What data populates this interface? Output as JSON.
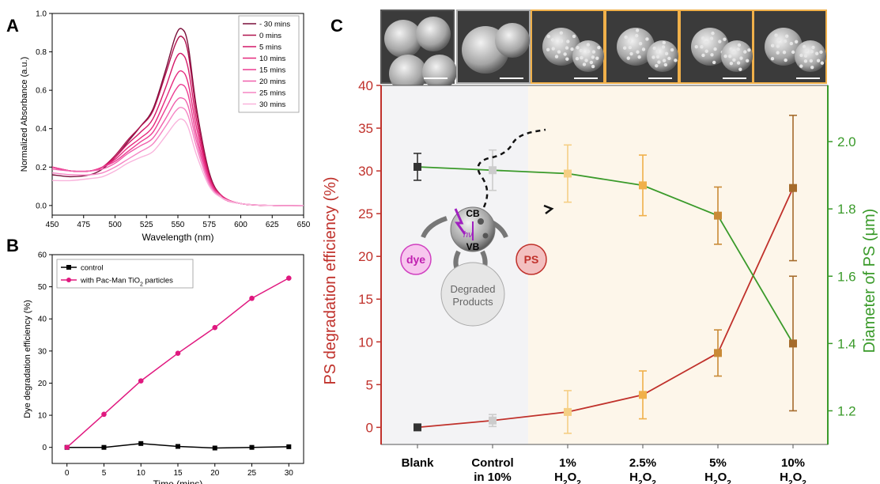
{
  "panels": {
    "a_letter": "A",
    "b_letter": "B",
    "c_letter": "C"
  },
  "chart_data": [
    {
      "panel": "A",
      "type": "line",
      "xlabel": "Wavelength (nm)",
      "ylabel": "Normalized Absorbance (a.u.)",
      "xlim": [
        450,
        650
      ],
      "ylim": [
        -0.05,
        1.0
      ],
      "x_ticks": [
        450,
        475,
        500,
        525,
        550,
        575,
        600,
        625,
        650
      ],
      "y_ticks": [
        0.0,
        0.2,
        0.4,
        0.6,
        0.8,
        1.0
      ],
      "x_tick_labels": [
        "450",
        "475",
        "500",
        "525",
        "550",
        "575",
        "600",
        "625",
        "650"
      ],
      "y_tick_labels": [
        "0.0",
        "0.2",
        "0.4",
        "0.6",
        "0.8",
        "1.0"
      ],
      "legend_position": "top-right",
      "x": [
        450,
        465,
        480,
        490,
        500,
        510,
        520,
        530,
        540,
        548,
        553,
        558,
        565,
        575,
        585,
        600,
        625,
        650
      ],
      "series": [
        {
          "name": "- 30 mins",
          "color": "#7a0f3a",
          "values": [
            0.16,
            0.15,
            0.16,
            0.19,
            0.25,
            0.33,
            0.41,
            0.5,
            0.7,
            0.88,
            0.92,
            0.84,
            0.5,
            0.17,
            0.05,
            0.01,
            0.0,
            0.0
          ]
        },
        {
          "name": "0 mins",
          "color": "#b0124f",
          "values": [
            0.2,
            0.18,
            0.18,
            0.2,
            0.26,
            0.34,
            0.41,
            0.49,
            0.68,
            0.84,
            0.88,
            0.8,
            0.48,
            0.16,
            0.05,
            0.01,
            0.0,
            0.0
          ]
        },
        {
          "name": "5 mins",
          "color": "#d41868",
          "values": [
            0.2,
            0.18,
            0.18,
            0.2,
            0.25,
            0.32,
            0.38,
            0.45,
            0.61,
            0.76,
            0.79,
            0.72,
            0.44,
            0.15,
            0.05,
            0.01,
            0.0,
            0.0
          ]
        },
        {
          "name": "10 mins",
          "color": "#e62a7e",
          "values": [
            0.2,
            0.18,
            0.18,
            0.2,
            0.24,
            0.3,
            0.35,
            0.41,
            0.55,
            0.67,
            0.7,
            0.64,
            0.4,
            0.14,
            0.05,
            0.01,
            0.0,
            0.0
          ]
        },
        {
          "name": "15 mins",
          "color": "#ec3d92",
          "values": [
            0.2,
            0.18,
            0.18,
            0.2,
            0.23,
            0.28,
            0.33,
            0.38,
            0.5,
            0.6,
            0.63,
            0.58,
            0.36,
            0.13,
            0.04,
            0.01,
            0.0,
            0.0
          ]
        },
        {
          "name": "20 mins",
          "color": "#f060ac",
          "values": [
            0.19,
            0.18,
            0.18,
            0.19,
            0.22,
            0.27,
            0.31,
            0.35,
            0.45,
            0.54,
            0.56,
            0.52,
            0.33,
            0.12,
            0.04,
            0.01,
            0.0,
            0.0
          ]
        },
        {
          "name": "25 mins",
          "color": "#f585c4",
          "values": [
            0.17,
            0.16,
            0.16,
            0.17,
            0.2,
            0.24,
            0.28,
            0.32,
            0.41,
            0.49,
            0.51,
            0.47,
            0.3,
            0.11,
            0.04,
            0.01,
            0.0,
            0.0
          ]
        },
        {
          "name": "30 mins",
          "color": "#f9b3dc",
          "values": [
            0.13,
            0.13,
            0.14,
            0.15,
            0.18,
            0.22,
            0.25,
            0.28,
            0.36,
            0.43,
            0.45,
            0.41,
            0.26,
            0.1,
            0.04,
            0.01,
            0.0,
            0.0
          ]
        }
      ]
    },
    {
      "panel": "B",
      "type": "line",
      "xlabel": "Time (mins)",
      "ylabel": "Dye degradation efficiency (%)",
      "xlim": [
        -2,
        32
      ],
      "ylim": [
        -5,
        60
      ],
      "x_ticks": [
        0,
        5,
        10,
        15,
        20,
        25,
        30
      ],
      "y_ticks": [
        0,
        10,
        20,
        30,
        40,
        50,
        60
      ],
      "x_tick_labels": [
        "0",
        "5",
        "10",
        "15",
        "20",
        "25",
        "30"
      ],
      "y_tick_labels": [
        "0",
        "10",
        "20",
        "30",
        "40",
        "50",
        "60"
      ],
      "legend_position": "top-left",
      "x": [
        0,
        5,
        10,
        15,
        20,
        25,
        30
      ],
      "series": [
        {
          "name": "control",
          "color": "#000000",
          "marker": "square",
          "values": [
            0,
            0,
            1.2,
            0.3,
            -0.2,
            0,
            0.2
          ]
        },
        {
          "name_prefix": "with Pac-Man TiO",
          "name_sub": "2",
          "name_suffix": " particles",
          "color": "#e0187f",
          "marker": "circle",
          "values": [
            0,
            10.3,
            20.7,
            29.3,
            37.3,
            46.4,
            52.7
          ]
        }
      ]
    },
    {
      "panel": "C",
      "type": "line",
      "categories": [
        {
          "line1": "Blank",
          "line2": "",
          "sub": ""
        },
        {
          "line1": "Control",
          "line2": "in 10%",
          "sub": ""
        },
        {
          "line1": "1%",
          "line2": "H",
          "sub": "2",
          "line2b": "O",
          "sub2": "2"
        },
        {
          "line1": "2.5%",
          "line2": "H",
          "sub": "2",
          "line2b": "O",
          "sub2": "2"
        },
        {
          "line1": "5%",
          "line2": "H",
          "sub": "2",
          "line2b": "O",
          "sub2": "2"
        },
        {
          "line1": "10%",
          "line2": "H",
          "sub": "2",
          "line2b": "O",
          "sub2": "2"
        }
      ],
      "ylabel_left": "PS degradation efficiency (%)",
      "ylabel_right": "Diameter of PS (μm)",
      "ylim_left": [
        -2,
        40
      ],
      "ylim_right": [
        1.1,
        2.167
      ],
      "y_ticks_left": [
        0,
        5,
        10,
        15,
        20,
        25,
        30,
        35,
        40
      ],
      "y_tick_labels_left": [
        "0",
        "5",
        "10",
        "15",
        "20",
        "25",
        "30",
        "35",
        "40"
      ],
      "y_ticks_right": [
        1.2,
        1.4,
        1.6,
        1.8,
        2.0
      ],
      "y_tick_labels_right": [
        "1.2",
        "1.4",
        "1.6",
        "1.8",
        "2.0"
      ],
      "left_axis_color": "#c0312b",
      "right_axis_color": "#3a9a2a",
      "marker_colors": [
        "#333333",
        "#cccccc",
        "#f5cf85",
        "#f0b04a",
        "#c98a36",
        "#a56b2b"
      ],
      "series": [
        {
          "name": "PS degradation efficiency",
          "axis": "left",
          "color": "#c0312b",
          "values": [
            0,
            0.8,
            1.8,
            3.8,
            8.7,
            28.0
          ],
          "errors": [
            0,
            0.7,
            2.5,
            2.8,
            2.7,
            8.5
          ]
        },
        {
          "name": "Diameter of PS",
          "axis": "right",
          "color": "#3a9a2a",
          "values": [
            1.925,
            1.915,
            1.905,
            1.87,
            1.78,
            1.4
          ],
          "errors": [
            0.04,
            0.06,
            0.085,
            0.09,
            0.085,
            0.2
          ]
        }
      ],
      "diagram": {
        "cb": "CB",
        "vb": "VB",
        "hv": "hν",
        "dye": "dye",
        "ps": "PS",
        "products_line1": "Degraded",
        "products_line2": "Products"
      }
    }
  ]
}
